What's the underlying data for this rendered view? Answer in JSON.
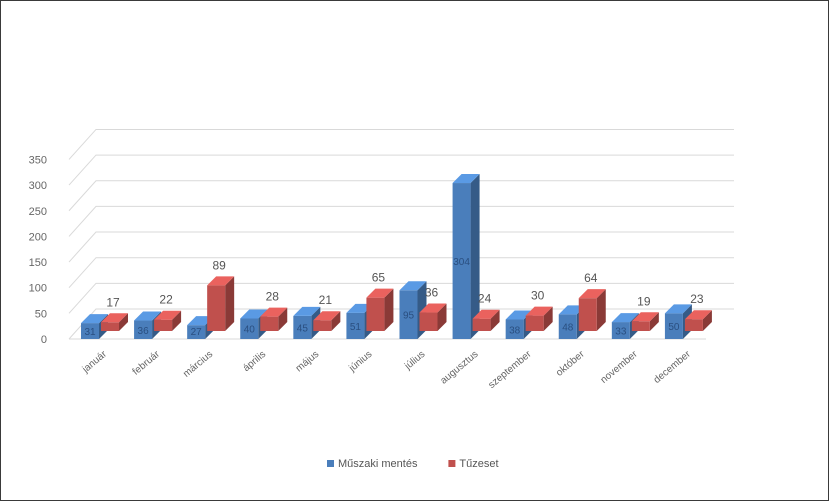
{
  "chart_data": {
    "type": "bar",
    "title": "",
    "xlabel": "",
    "ylabel": "",
    "ylim": [
      0,
      350
    ],
    "yticks": [
      0,
      50,
      100,
      150,
      200,
      250,
      300,
      350
    ],
    "grid": true,
    "legend_position": "bottom",
    "categories": [
      "január",
      "február",
      "március",
      "április",
      "május",
      "június",
      "július",
      "augusztus",
      "szeptember",
      "október",
      "november",
      "december"
    ],
    "series": [
      {
        "name": "Műszaki mentés",
        "color": "#4a7ebb",
        "values": [
          31,
          36,
          27,
          40,
          45,
          51,
          95,
          304,
          38,
          48,
          33,
          50
        ],
        "show_labels": false
      },
      {
        "name": "Tűzeset",
        "color": "#c0504d",
        "values": [
          17,
          22,
          89,
          28,
          21,
          65,
          36,
          24,
          30,
          64,
          19,
          23
        ],
        "show_labels": true
      }
    ]
  }
}
